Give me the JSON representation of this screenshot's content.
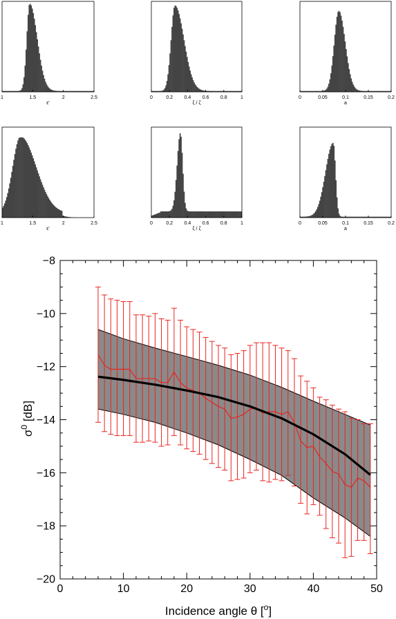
{
  "chart_data": [
    {
      "type": "bar",
      "panel": "histogram-top-1",
      "xlabel": "ε'",
      "xlim": [
        1,
        2.5
      ],
      "xticks": [
        "1",
        "1.5",
        "2",
        "2.5"
      ],
      "peak": 1.45,
      "shape": "right-skewed"
    },
    {
      "type": "bar",
      "panel": "histogram-top-2",
      "xlabel": "ξ / ζ",
      "xlim": [
        0,
        1
      ],
      "xticks": [
        "0",
        "0.2",
        "0.4",
        "0.6",
        "0.8",
        "1"
      ],
      "peak": 0.26,
      "shape": "right-skewed"
    },
    {
      "type": "bar",
      "panel": "histogram-top-3",
      "xlabel": "a",
      "xlim": [
        0,
        0.2
      ],
      "xticks": [
        "0",
        "0.05",
        "0.1",
        "0.15",
        "0.2"
      ],
      "peak": 0.085,
      "shape": "near-gaussian"
    },
    {
      "type": "bar",
      "panel": "histogram-bottom-1",
      "xlabel": "ε'",
      "xlim": [
        1,
        2.5
      ],
      "xticks": [
        "1",
        "1.5",
        "2",
        "2.5"
      ],
      "peak": 1.3,
      "shape": "broad right-skewed"
    },
    {
      "type": "bar",
      "panel": "histogram-bottom-2",
      "xlabel": "ξ / ζ",
      "xlim": [
        0,
        1
      ],
      "xticks": [
        "0",
        "0.2",
        "0.4",
        "0.6",
        "0.8",
        "1"
      ],
      "peak": 0.32,
      "shape": "sharp peak with long flat tail"
    },
    {
      "type": "bar",
      "panel": "histogram-bottom-3",
      "xlabel": "a",
      "xlim": [
        0,
        0.2
      ],
      "xticks": [
        "0",
        "0.05",
        "0.1",
        "0.15",
        "0.2"
      ],
      "peak": 0.073,
      "shape": "left-skewed"
    },
    {
      "type": "line",
      "panel": "main-plot",
      "xlabel": "Incidence angle θ [",
      "xlabel_sup": "o",
      "xlabel_end": "]",
      "ylabel": "σ",
      "ylabel_sup": "0",
      "ylabel_end": " [dB]",
      "xlim": [
        0,
        50
      ],
      "ylim": [
        -20,
        -8
      ],
      "xticks": [
        "0",
        "10",
        "20",
        "30",
        "40",
        "50"
      ],
      "yticks": [
        "−20",
        "−18",
        "−16",
        "−14",
        "−12",
        "−10",
        "−8"
      ],
      "grid": false,
      "colors": {
        "measured": "#e8231f",
        "model": "#000000",
        "band": "#8a8a8a"
      },
      "model_x": [
        6,
        10,
        15,
        20,
        25,
        30,
        35,
        40,
        45,
        49
      ],
      "model_y": [
        -12.38,
        -12.5,
        -12.68,
        -12.9,
        -13.15,
        -13.5,
        -13.95,
        -14.55,
        -15.3,
        -16.08
      ],
      "band_upper": [
        -10.6,
        -10.95,
        -11.3,
        -11.62,
        -11.95,
        -12.32,
        -12.78,
        -13.3,
        -13.8,
        -14.2
      ],
      "band_lower": [
        -13.6,
        -13.8,
        -14.1,
        -14.5,
        -14.95,
        -15.5,
        -16.1,
        -16.95,
        -17.7,
        -18.4
      ],
      "measured_x": [
        6,
        7,
        8,
        9,
        10,
        11,
        12,
        13,
        14,
        15,
        16,
        17,
        18,
        19,
        20,
        21,
        22,
        23,
        24,
        25,
        26,
        27,
        28,
        29,
        30,
        31,
        32,
        33,
        34,
        35,
        36,
        37,
        38,
        39,
        40,
        41,
        42,
        43,
        44,
        45,
        46,
        47,
        48,
        49
      ],
      "measured_y": [
        -11.55,
        -11.95,
        -12.1,
        -12.1,
        -12.1,
        -12.1,
        -12.45,
        -12.45,
        -12.45,
        -12.45,
        -12.6,
        -12.6,
        -12.2,
        -12.6,
        -12.8,
        -12.9,
        -13.0,
        -13.2,
        -13.35,
        -13.5,
        -13.6,
        -13.95,
        -13.9,
        -13.8,
        -13.6,
        -13.55,
        -13.75,
        -13.7,
        -13.7,
        -13.8,
        -13.7,
        -14.1,
        -14.8,
        -15.05,
        -15.0,
        -15.4,
        -15.65,
        -15.95,
        -16.05,
        -16.45,
        -16.55,
        -16.2,
        -16.3,
        -16.55
      ],
      "measured_err_up": [
        -9.0,
        -9.3,
        -9.45,
        -9.5,
        -9.55,
        -9.55,
        -10.05,
        -10.05,
        -10.1,
        -10.0,
        -10.2,
        -10.25,
        -9.8,
        -10.25,
        -10.5,
        -10.6,
        -10.7,
        -10.9,
        -11.05,
        -11.2,
        -11.3,
        -11.55,
        -11.5,
        -11.4,
        -11.2,
        -11.1,
        -11.1,
        -11.1,
        -11.2,
        -11.3,
        -11.4,
        -11.7,
        -12.35,
        -12.55,
        -12.8,
        -13.15,
        -13.25,
        -13.45,
        -13.6,
        -13.7,
        -13.95,
        -14.0,
        -14.15,
        -14.15
      ],
      "measured_err_down": [
        -14.1,
        -14.45,
        -14.55,
        -14.6,
        -14.6,
        -14.6,
        -14.85,
        -14.85,
        -14.8,
        -14.85,
        -15.0,
        -14.95,
        -14.6,
        -14.95,
        -15.1,
        -15.2,
        -15.3,
        -15.5,
        -15.65,
        -15.8,
        -15.9,
        -16.3,
        -16.25,
        -16.2,
        -16.0,
        -15.9,
        -16.3,
        -16.35,
        -16.25,
        -16.3,
        -16.1,
        -16.5,
        -17.15,
        -17.55,
        -17.2,
        -17.6,
        -18.1,
        -18.45,
        -18.65,
        -19.2,
        -19.15,
        -18.55,
        -18.55,
        -19.05
      ]
    }
  ]
}
